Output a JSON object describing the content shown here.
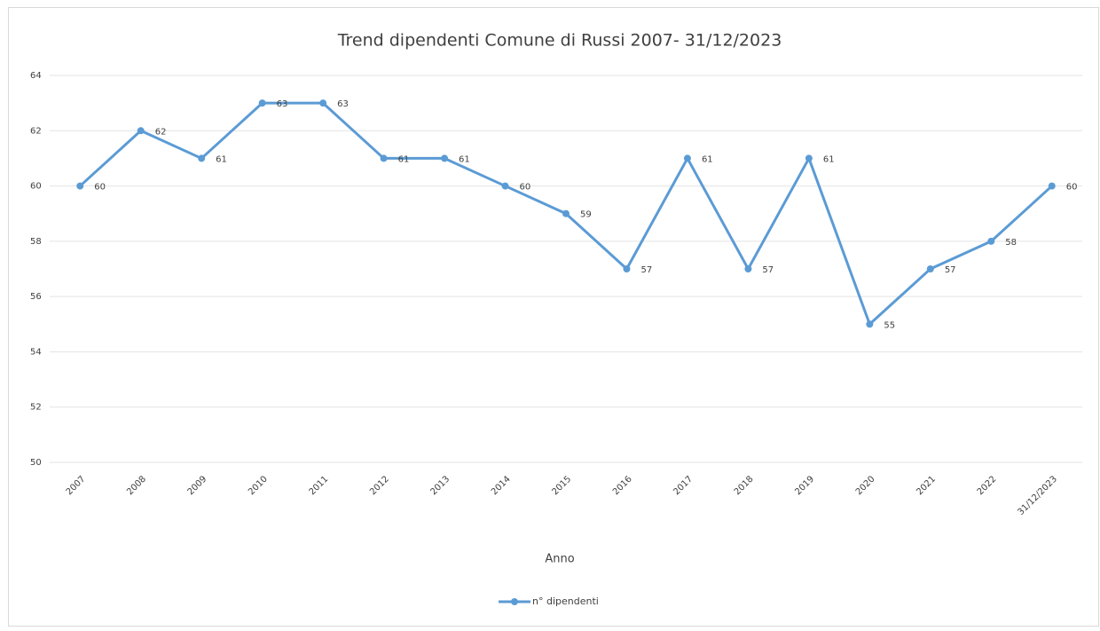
{
  "chart_data": {
    "type": "line",
    "title": "Trend dipendenti Comune di Russi 2007- 31/12/2023",
    "x_label": "Anno",
    "categories": [
      "2007",
      "2008",
      "2009",
      "2010",
      "2011",
      "2012",
      "2013",
      "2014",
      "2015",
      "2016",
      "2017",
      "2018",
      "2019",
      "2020",
      "2021",
      "2022",
      "31/12/2023"
    ],
    "series": [
      {
        "name": "n° dipendenti",
        "color": "#5b9bd5",
        "values": [
          60,
          62,
          61,
          63,
          63,
          61,
          61,
          60,
          59,
          57,
          61,
          57,
          61,
          55,
          57,
          58,
          60
        ]
      }
    ],
    "ylim": [
      50,
      64
    ],
    "yticks": [
      50,
      52,
      54,
      56,
      58,
      60,
      62,
      64
    ],
    "grid": true,
    "legend": "bottom"
  }
}
